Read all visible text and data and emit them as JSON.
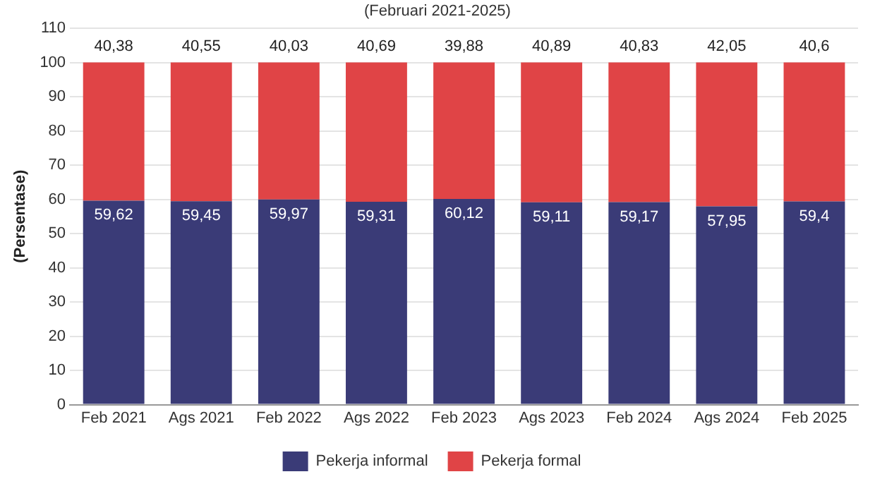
{
  "chart_data": {
    "type": "bar",
    "subtitle": "(Februari 2021-2025)",
    "ylabel": "(Persentase)",
    "categories": [
      "Feb 2021",
      "Ags 2021",
      "Feb 2022",
      "Ags 2022",
      "Feb 2023",
      "Ags 2023",
      "Feb 2024",
      "Ags 2024",
      "Feb 2025"
    ],
    "stacked": true,
    "ylim": [
      0,
      110
    ],
    "yticks": [
      0,
      10,
      20,
      30,
      40,
      50,
      60,
      70,
      80,
      90,
      100,
      110
    ],
    "grid": "y",
    "legend": "bottom",
    "series": [
      {
        "name": "Pekerja informal",
        "color": "#3a3b77",
        "values": [
          59.62,
          59.45,
          59.97,
          59.31,
          60.12,
          59.11,
          59.17,
          57.95,
          59.4
        ],
        "value_labels": [
          "59,62",
          "59,45",
          "59,97",
          "59,31",
          "60,12",
          "59,11",
          "59,17",
          "57,95",
          "59,4"
        ]
      },
      {
        "name": "Pekerja formal",
        "color": "#e04446",
        "values": [
          40.38,
          40.55,
          40.03,
          40.69,
          39.88,
          40.89,
          40.83,
          42.05,
          40.6
        ],
        "value_labels": [
          "40,38",
          "40,55",
          "40,03",
          "40,69",
          "39,88",
          "40,89",
          "40,83",
          "42,05",
          "40,6"
        ]
      }
    ]
  }
}
